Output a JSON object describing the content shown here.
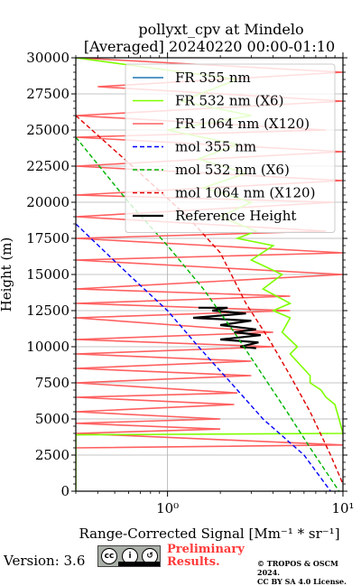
{
  "chart_data": {
    "type": "line",
    "title_line1": "pollyxt_cpv at Mindelo",
    "title_line2": "[Averaged] 20240220 00:00-01:10",
    "xlabel": "Range-Corrected Signal [Mm⁻¹ * sr⁻¹]",
    "ylabel": "Height (m)",
    "x_scale": "log",
    "xlim": [
      0.3,
      10
    ],
    "ylim": [
      0,
      30000
    ],
    "x_tick_labels": [
      "10⁰",
      "10¹"
    ],
    "x_ticks": [
      1,
      10
    ],
    "y_ticks": [
      0,
      2500,
      5000,
      7500,
      10000,
      12500,
      15000,
      17500,
      20000,
      22500,
      25000,
      27500,
      30000
    ],
    "grid": true,
    "legend_position": "top-right",
    "colors": {
      "fr355": "#1f77b4",
      "fr532": "#7fff00",
      "fr1064": "#ff6060",
      "mol355": "#0000ff",
      "mol532": "#00b400",
      "mol1064": "#e00000",
      "reference": "#000000"
    },
    "series": [
      {
        "name": "FR 355 nm",
        "key": "fr355",
        "style": "solid",
        "points": []
      },
      {
        "name": "FR 532 nm (X6)",
        "key": "fr532",
        "style": "solid",
        "points": [
          [
            0.3,
            30000
          ],
          [
            2.5,
            28500
          ],
          [
            1.2,
            27000
          ],
          [
            3,
            26000
          ],
          [
            1.0,
            25000
          ],
          [
            2.5,
            24000
          ],
          [
            1.5,
            23000
          ],
          [
            2.8,
            22000
          ],
          [
            1.6,
            21000
          ],
          [
            3,
            20000
          ],
          [
            2,
            19000
          ],
          [
            3.2,
            18000
          ],
          [
            2.5,
            17500
          ],
          [
            4,
            17000
          ],
          [
            3,
            16000
          ],
          [
            4.5,
            15000
          ],
          [
            3.5,
            14000
          ],
          [
            5,
            13000
          ],
          [
            4,
            12500
          ],
          [
            5,
            12000
          ],
          [
            4.5,
            11000
          ],
          [
            5.5,
            10000
          ],
          [
            5,
            9500
          ],
          [
            6.5,
            8000
          ],
          [
            6.5,
            7500
          ],
          [
            7.5,
            7000
          ],
          [
            8,
            6500
          ],
          [
            9,
            6000
          ],
          [
            9.5,
            5000
          ],
          [
            10,
            4000
          ],
          [
            0.3,
            3900
          ],
          [
            0.3,
            0
          ]
        ]
      },
      {
        "name": "FR 1064 nm (X120)",
        "key": "fr1064",
        "style": "solid",
        "points": [
          [
            0.3,
            30000
          ],
          [
            10,
            29000
          ],
          [
            0.4,
            28000
          ],
          [
            10,
            27000
          ],
          [
            0.3,
            26000
          ],
          [
            8,
            25000
          ],
          [
            0.3,
            24500
          ],
          [
            10,
            23500
          ],
          [
            0.3,
            22500
          ],
          [
            10,
            21500
          ],
          [
            0.3,
            20500
          ],
          [
            9,
            20000
          ],
          [
            0.3,
            19000
          ],
          [
            8,
            18000
          ],
          [
            0.3,
            17500
          ],
          [
            10,
            16500
          ],
          [
            0.3,
            16000
          ],
          [
            10,
            15000
          ],
          [
            0.3,
            14000
          ],
          [
            5,
            13500
          ],
          [
            0.3,
            13000
          ],
          [
            5,
            12500
          ],
          [
            0.3,
            12000
          ],
          [
            4,
            11000
          ],
          [
            0.3,
            10500
          ],
          [
            4,
            10000
          ],
          [
            0.3,
            9500
          ],
          [
            3,
            9000
          ],
          [
            0.3,
            8500
          ],
          [
            3,
            8000
          ],
          [
            0.3,
            7500
          ],
          [
            2.5,
            6800
          ],
          [
            0.3,
            6500
          ],
          [
            2.4,
            6000
          ],
          [
            0.3,
            5500
          ],
          [
            2.0,
            5000
          ],
          [
            0.3,
            4700
          ],
          [
            2,
            4300
          ],
          [
            0.3,
            4000
          ],
          [
            10,
            3200
          ],
          [
            0.3,
            3000
          ]
        ]
      },
      {
        "name": "mol 355 nm",
        "key": "mol355",
        "style": "dashed",
        "points": [
          [
            0.3,
            18500
          ],
          [
            0.6,
            15000
          ],
          [
            1.0,
            12500
          ],
          [
            1.5,
            10000
          ],
          [
            2.3,
            7500
          ],
          [
            3.5,
            5000
          ],
          [
            6,
            2500
          ],
          [
            8.5,
            0
          ]
        ]
      },
      {
        "name": "mol 532 nm (X6)",
        "key": "mol532",
        "style": "dashed",
        "points": [
          [
            0.3,
            24500
          ],
          [
            0.6,
            20000
          ],
          [
            1.0,
            17000
          ],
          [
            1.6,
            14000
          ],
          [
            2.4,
            11000
          ],
          [
            3.5,
            8000
          ],
          [
            4.8,
            5500
          ],
          [
            6.5,
            3000
          ],
          [
            9.5,
            0
          ]
        ]
      },
      {
        "name": "mol 1064 nm (X120)",
        "key": "mol1064",
        "style": "dashed",
        "points": [
          [
            0.3,
            26000
          ],
          [
            0.7,
            22000
          ],
          [
            1.3,
            19000
          ],
          [
            2.0,
            16500
          ],
          [
            2.8,
            13000
          ],
          [
            3.8,
            10500
          ],
          [
            5,
            8000
          ],
          [
            6.5,
            5500
          ],
          [
            8.5,
            2500
          ],
          [
            10,
            500
          ]
        ]
      },
      {
        "name": "Reference Height",
        "key": "reference",
        "style": "solid",
        "points": [
          [
            1.5,
            12700
          ],
          [
            2.2,
            12700
          ],
          [
            1.8,
            12500
          ],
          [
            2.8,
            12300
          ],
          [
            1.4,
            12000
          ],
          [
            3.0,
            11800
          ],
          [
            2.0,
            11500
          ],
          [
            3.2,
            11200
          ],
          [
            2.4,
            11000
          ],
          [
            3.4,
            10800
          ],
          [
            2.0,
            10500
          ],
          [
            3.3,
            10300
          ],
          [
            2.6,
            10000
          ],
          [
            3.2,
            9900
          ]
        ]
      }
    ]
  },
  "footer": {
    "version": "Version: 3.6",
    "badge_cc": "cc",
    "badge_by": "i",
    "badge_sa": "↺",
    "prelim_line1": "Preliminary",
    "prelim_line2": "Results.",
    "copyright_line1": "© TROPOS & OSCM 2024.",
    "copyright_line2": "CC BY SA 4.0 License."
  }
}
